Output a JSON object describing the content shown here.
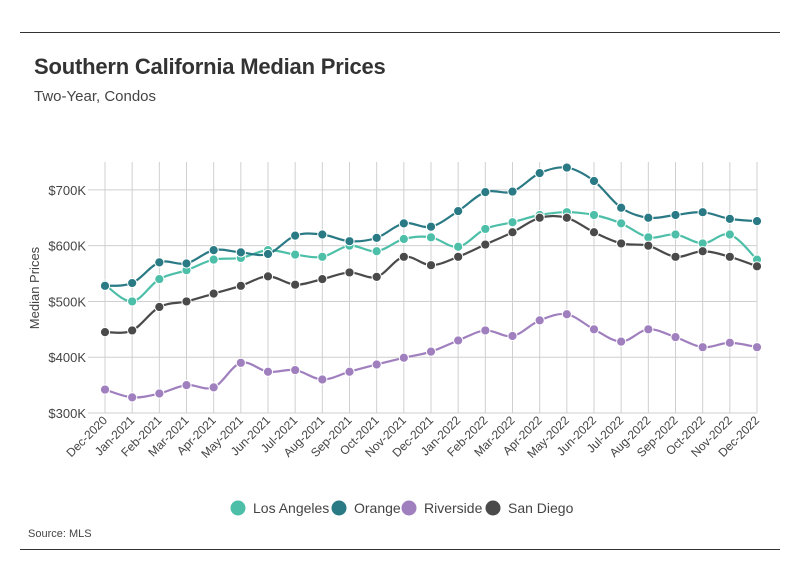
{
  "header": {
    "title": "Southern California Median Prices",
    "subtitle": "Two-Year, Condos"
  },
  "footer": {
    "source": "Source:  MLS"
  },
  "chart_data": {
    "type": "line",
    "title": "Southern California Median Prices",
    "subtitle": "Two-Year, Condos",
    "xlabel": "",
    "ylabel": "Median Prices",
    "ylim": [
      300000,
      750000
    ],
    "yticks": [
      300000,
      400000,
      500000,
      600000,
      700000
    ],
    "ytick_labels": [
      "$300K",
      "$400K",
      "$500K",
      "$600K",
      "$700K"
    ],
    "grid": true,
    "legend_position": "bottom-center",
    "categories": [
      "Dec-2020",
      "Jan-2021",
      "Feb-2021",
      "Mar-2021",
      "Apr-2021",
      "May-2021",
      "Jun-2021",
      "Jul-2021",
      "Aug-2021",
      "Sep-2021",
      "Oct-2021",
      "Nov-2021",
      "Dec-2021",
      "Jan-2022",
      "Feb-2022",
      "Mar-2022",
      "Apr-2022",
      "May-2022",
      "Jun-2022",
      "Jul-2022",
      "Aug-2022",
      "Sep-2022",
      "Oct-2022",
      "Nov-2022",
      "Dec-2022"
    ],
    "series": [
      {
        "name": "Los Angeles",
        "color": "#4dbfa8",
        "values": [
          530000,
          500000,
          540000,
          556000,
          575000,
          578000,
          592000,
          584000,
          580000,
          600000,
          590000,
          612000,
          615000,
          598000,
          630000,
          642000,
          655000,
          660000,
          655000,
          640000,
          615000,
          620000,
          604000,
          620000,
          575000
        ]
      },
      {
        "name": "Orange",
        "color": "#2a7a85",
        "values": [
          528000,
          533000,
          570000,
          568000,
          592000,
          588000,
          585000,
          618000,
          620000,
          608000,
          614000,
          640000,
          634000,
          662000,
          696000,
          697000,
          730000,
          740000,
          716000,
          668000,
          650000,
          655000,
          660000,
          648000,
          644000
        ]
      },
      {
        "name": "Riverside",
        "color": "#a07fbf",
        "values": [
          342000,
          328000,
          335000,
          350000,
          346000,
          390000,
          374000,
          377000,
          360000,
          374000,
          387000,
          399000,
          410000,
          430000,
          448000,
          438000,
          466000,
          477000,
          450000,
          428000,
          450000,
          436000,
          418000,
          426000,
          418000
        ]
      },
      {
        "name": "San Diego",
        "color": "#4a4a4a",
        "values": [
          445000,
          448000,
          490000,
          500000,
          514000,
          528000,
          545000,
          530000,
          540000,
          552000,
          544000,
          580000,
          565000,
          580000,
          602000,
          624000,
          650000,
          650000,
          624000,
          604000,
          600000,
          580000,
          590000,
          580000,
          563000
        ]
      }
    ]
  }
}
